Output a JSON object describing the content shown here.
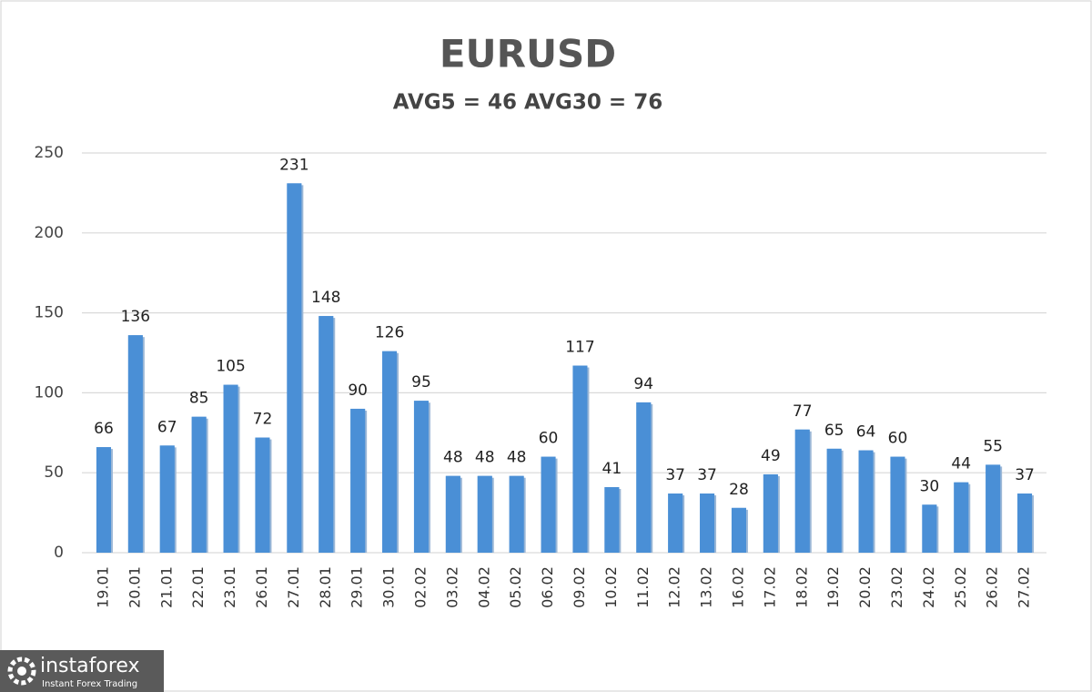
{
  "chart_data": {
    "type": "bar",
    "title": "EURUSD",
    "subtitle": "AVG5 = 46 AVG30 = 76",
    "categories": [
      "19.01",
      "20.01",
      "21.01",
      "22.01",
      "23.01",
      "26.01",
      "27.01",
      "28.01",
      "29.01",
      "30.01",
      "02.02",
      "03.02",
      "04.02",
      "05.02",
      "06.02",
      "09.02",
      "10.02",
      "11.02",
      "12.02",
      "13.02",
      "16.02",
      "17.02",
      "18.02",
      "19.02",
      "20.02",
      "23.02",
      "24.02",
      "25.02",
      "26.02",
      "27.02"
    ],
    "values": [
      66,
      136,
      67,
      85,
      105,
      72,
      231,
      148,
      90,
      126,
      95,
      48,
      48,
      48,
      60,
      117,
      41,
      94,
      37,
      37,
      28,
      49,
      77,
      65,
      64,
      60,
      30,
      44,
      55,
      37
    ],
    "color": "#4a8fd6",
    "ylim": [
      0,
      250
    ],
    "yticks": [
      0,
      50,
      100,
      150,
      200,
      250
    ],
    "grid": true
  },
  "logo": {
    "name": "instaforex",
    "tagline": "Instant Forex Trading"
  }
}
